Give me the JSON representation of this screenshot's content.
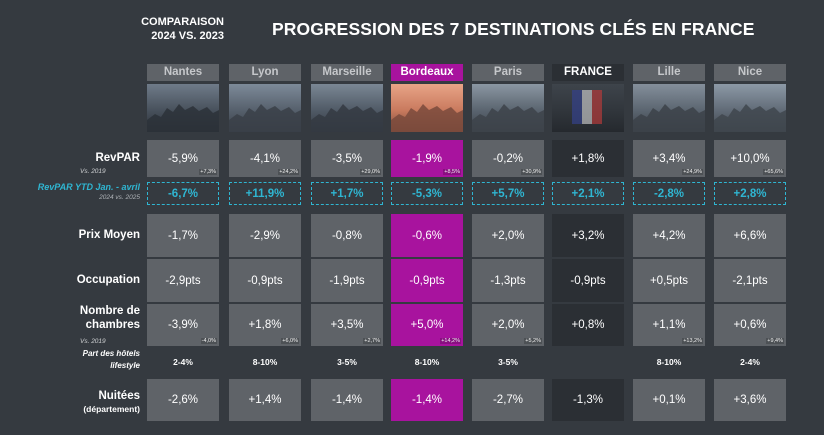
{
  "header": {
    "comparison_line1": "COMPARAISON",
    "comparison_line2": "2024 VS. 2023",
    "title": "PROGRESSION DES 7 DESTINATIONS CLÉS EN FRANCE"
  },
  "vs_2019_label": "Vs. 2019",
  "row_labels": {
    "revpar": "RevPAR",
    "ytd": "RevPAR YTD Jan. - avril",
    "ytd_sub": "2024 vs. 2025",
    "prix": "Prix Moyen",
    "occupation": "Occupation",
    "chambres_1": "Nombre de",
    "chambres_2": "chambres",
    "lifestyle_1": "Part des hôtels",
    "lifestyle_2": "lifestyle",
    "nuitees": "Nuitées",
    "nuitees_sub": "(département)"
  },
  "colors": {
    "background": "#353a40",
    "cell_grey": "#5f6368",
    "cell_dark": "#2b2f34",
    "highlight": "#a8139e",
    "ytd_accent": "#2fb6d2"
  },
  "chart_data": {
    "type": "table",
    "title": "PROGRESSION DES 7 DESTINATIONS CLÉS EN FRANCE",
    "columns": [
      {
        "name": "Nantes",
        "revpar": "-5,9%",
        "revpar_2019": "+7,3%",
        "ytd": "-6,7%",
        "prix": "-1,7%",
        "occupation": "-2,9pts",
        "chambres": "-3,9%",
        "chambres_2019": "-4,0%",
        "lifestyle": "2-4%",
        "nuitees": "-2,6%"
      },
      {
        "name": "Lyon",
        "revpar": "-4,1%",
        "revpar_2019": "+24,2%",
        "ytd": "+11,9%",
        "prix": "-2,9%",
        "occupation": "-0,9pts",
        "chambres": "+1,8%",
        "chambres_2019": "+6,0%",
        "lifestyle": "8-10%",
        "nuitees": "+1,4%"
      },
      {
        "name": "Marseille",
        "revpar": "-3,5%",
        "revpar_2019": "+29,0%",
        "ytd": "+1,7%",
        "prix": "-0,8%",
        "occupation": "-1,9pts",
        "chambres": "+3,5%",
        "chambres_2019": "+2,7%",
        "lifestyle": "3-5%",
        "nuitees": "-1,4%"
      },
      {
        "name": "Bordeaux",
        "revpar": "-1,9%",
        "revpar_2019": "+8,5%",
        "ytd": "-5,3%",
        "prix": "-0,6%",
        "occupation": "-0,9pts",
        "chambres": "+5,0%",
        "chambres_2019": "+14,2%",
        "lifestyle": "8-10%",
        "nuitees": "-1,4%"
      },
      {
        "name": "Paris",
        "revpar": "-0,2%",
        "revpar_2019": "+30,9%",
        "ytd": "+5,7%",
        "prix": "+2,0%",
        "occupation": "-1,3pts",
        "chambres": "+2,0%",
        "chambres_2019": "+5,2%",
        "lifestyle": "3-5%",
        "nuitees": "-2,7%"
      },
      {
        "name": "FRANCE",
        "revpar": "+1,8%",
        "revpar_2019": "",
        "ytd": "+2,1%",
        "prix": "+3,2%",
        "occupation": "-0,9pts",
        "chambres": "+0,8%",
        "chambres_2019": "",
        "lifestyle": "",
        "nuitees": "-1,3%"
      },
      {
        "name": "Lille",
        "revpar": "+3,4%",
        "revpar_2019": "+24,9%",
        "ytd": "-2,8%",
        "prix": "+4,2%",
        "occupation": "+0,5pts",
        "chambres": "+1,1%",
        "chambres_2019": "+13,2%",
        "lifestyle": "8-10%",
        "nuitees": "+0,1%"
      },
      {
        "name": "Nice",
        "revpar": "+10,0%",
        "revpar_2019": "+65,6%",
        "ytd": "+2,8%",
        "prix": "+6,6%",
        "occupation": "-2,1pts",
        "chambres": "+0,6%",
        "chambres_2019": "+9,4%",
        "lifestyle": "2-4%",
        "nuitees": "+3,6%"
      }
    ]
  }
}
